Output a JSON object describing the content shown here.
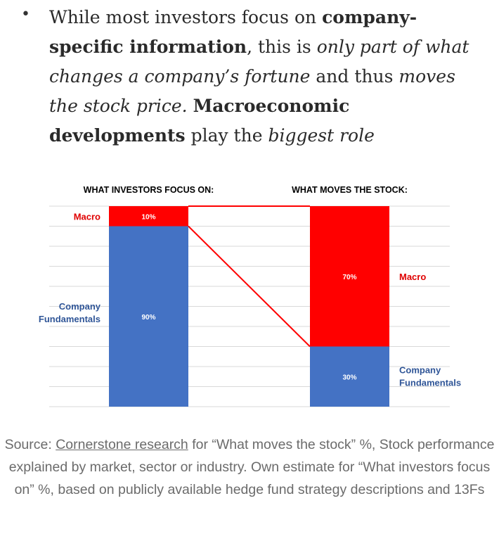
{
  "bullet": {
    "segments": [
      {
        "text": "While most investors focus on ",
        "style": "normal"
      },
      {
        "text": "company-specific information",
        "style": "bold"
      },
      {
        "text": ", this is ",
        "style": "normal"
      },
      {
        "text": "only part of what changes a company’s fortune",
        "style": "italic"
      },
      {
        "text": " and thus ",
        "style": "normal"
      },
      {
        "text": "moves the stock price.",
        "style": "italic"
      },
      {
        "text": " ",
        "style": "normal"
      },
      {
        "text": "Macroeconomic developments",
        "style": "bold"
      },
      {
        "text": " play the ",
        "style": "normal"
      },
      {
        "text": "biggest role",
        "style": "italic"
      }
    ]
  },
  "chart_data": {
    "type": "bar",
    "stacked": true,
    "categories": [
      "WHAT INVESTORS FOCUS ON:",
      "WHAT MOVES THE STOCK:"
    ],
    "series": [
      {
        "name": "Company Fundamentals",
        "values": [
          90,
          30
        ],
        "labels": [
          "90%",
          "30%"
        ],
        "color": "#4472C4"
      },
      {
        "name": "Macro",
        "values": [
          10,
          70
        ],
        "labels": [
          "10%",
          "70%"
        ],
        "color": "#FF0000"
      }
    ],
    "left_labels": {
      "macro": "Macro",
      "company": "Company\nFundamentals"
    },
    "right_labels": {
      "macro": "Macro",
      "company": "Company\nFundamentals"
    },
    "ylim": [
      0,
      100
    ],
    "grid": true,
    "legend": "none"
  },
  "caption": {
    "prefix": "Source: ",
    "link": "Cornerstone research",
    "rest": " for “What moves the stock” %, Stock performance explained by market, sector or industry. Own estimate for “What investors focus on” %, based on publicly available hedge fund strategy descriptions and 13Fs"
  },
  "colors": {
    "macro": "#FF0000",
    "company": "#4472C4",
    "label_blue": "#2F5597",
    "label_red": "#E00000"
  }
}
